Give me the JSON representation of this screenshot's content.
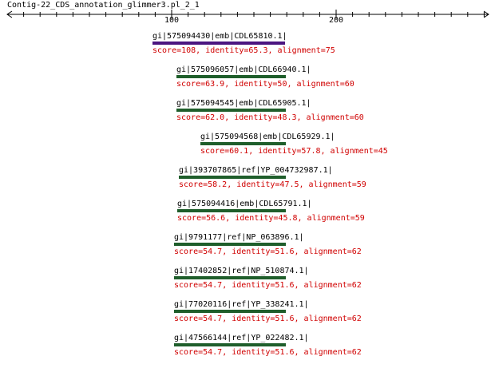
{
  "title": "Contig-22_CDS_annotation_glimmer3.pl_2_1",
  "ruler": {
    "ticks": [
      {
        "label": "100"
      },
      {
        "label": "200"
      }
    ]
  },
  "colors": {
    "first_bar": "#4b1580",
    "bar": "#1f5e2b",
    "stats": "#d00000"
  },
  "hits": [
    {
      "name": "gi|575094430|emb|CDL65810.1|",
      "stats": "score=108, identity=65.3, alignment=75"
    },
    {
      "name": "gi|575096057|emb|CDL66940.1|",
      "stats": "score=63.9, identity=50, alignment=60"
    },
    {
      "name": "gi|575094545|emb|CDL65905.1|",
      "stats": "score=62.0, identity=48.3, alignment=60"
    },
    {
      "name": "gi|575094568|emb|CDL65929.1|",
      "stats": "score=60.1, identity=57.8, alignment=45"
    },
    {
      "name": "gi|393707865|ref|YP_004732987.1|",
      "stats": "score=58.2, identity=47.5, alignment=59"
    },
    {
      "name": "gi|575094416|emb|CDL65791.1|",
      "stats": "score=56.6, identity=45.8, alignment=59"
    },
    {
      "name": "gi|9791177|ref|NP_063896.1|",
      "stats": "score=54.7, identity=51.6, alignment=62"
    },
    {
      "name": "gi|17402852|ref|NP_510874.1|",
      "stats": "score=54.7, identity=51.6, alignment=62"
    },
    {
      "name": "gi|77020116|ref|YP_338241.1|",
      "stats": "score=54.7, identity=51.6, alignment=62"
    },
    {
      "name": "gi|47566144|ref|YP_022482.1|",
      "stats": "score=54.7, identity=51.6, alignment=62"
    }
  ]
}
